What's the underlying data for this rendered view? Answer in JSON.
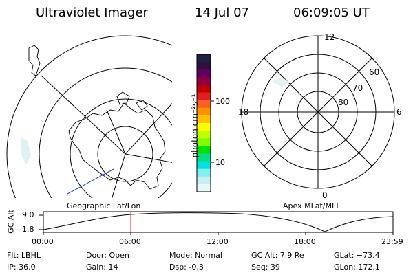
{
  "header": {
    "title": "Ultraviolet Imager",
    "date": "14 Jul 07",
    "time": "06:09:05 UT"
  },
  "colorbar": {
    "unit_label": "photon cm⁻²s⁻¹",
    "ticks": [
      "100",
      "10"
    ],
    "colors": [
      "#202040",
      "#301040",
      "#600060",
      "#900040",
      "#c00000",
      "#e02020",
      "#ff6020",
      "#ff9000",
      "#ffc000",
      "#ffff00",
      "#c0ff00",
      "#80ff00",
      "#00e000",
      "#00e080",
      "#00e0e0",
      "#80f0f0",
      "#c8f0f0",
      "#e8f8f8"
    ]
  },
  "left_panel": {
    "label": "Geographic Lat/Lon"
  },
  "right_panel": {
    "label": "Apex MLat/MLT",
    "clock_labels": {
      "top": "12",
      "right": "6",
      "bottom": "0",
      "left": "18"
    },
    "lat_labels": [
      "60",
      "70",
      "80"
    ]
  },
  "timeline": {
    "axis_label": "GC Alt",
    "y_ticks": [
      "9.0",
      "1.8"
    ],
    "x_ticks": [
      "00:00",
      "06:00",
      "12:00",
      "18:00",
      "23:59"
    ],
    "marker_time": "06:00",
    "marker_color": "#e02020"
  },
  "info": {
    "flt": "Flt: LBHL",
    "ip": "IP: 36.0",
    "door": "Door: Open",
    "gain": "Gain: 14",
    "mode": "Mode: Normal",
    "dsp": "Dsp:    -0.3",
    "gc_alt": "GC Alt: 7.9 Re",
    "seq": "Seq: 39",
    "glat": "GLat: −73.4",
    "glon": "GLon: 172.1"
  }
}
